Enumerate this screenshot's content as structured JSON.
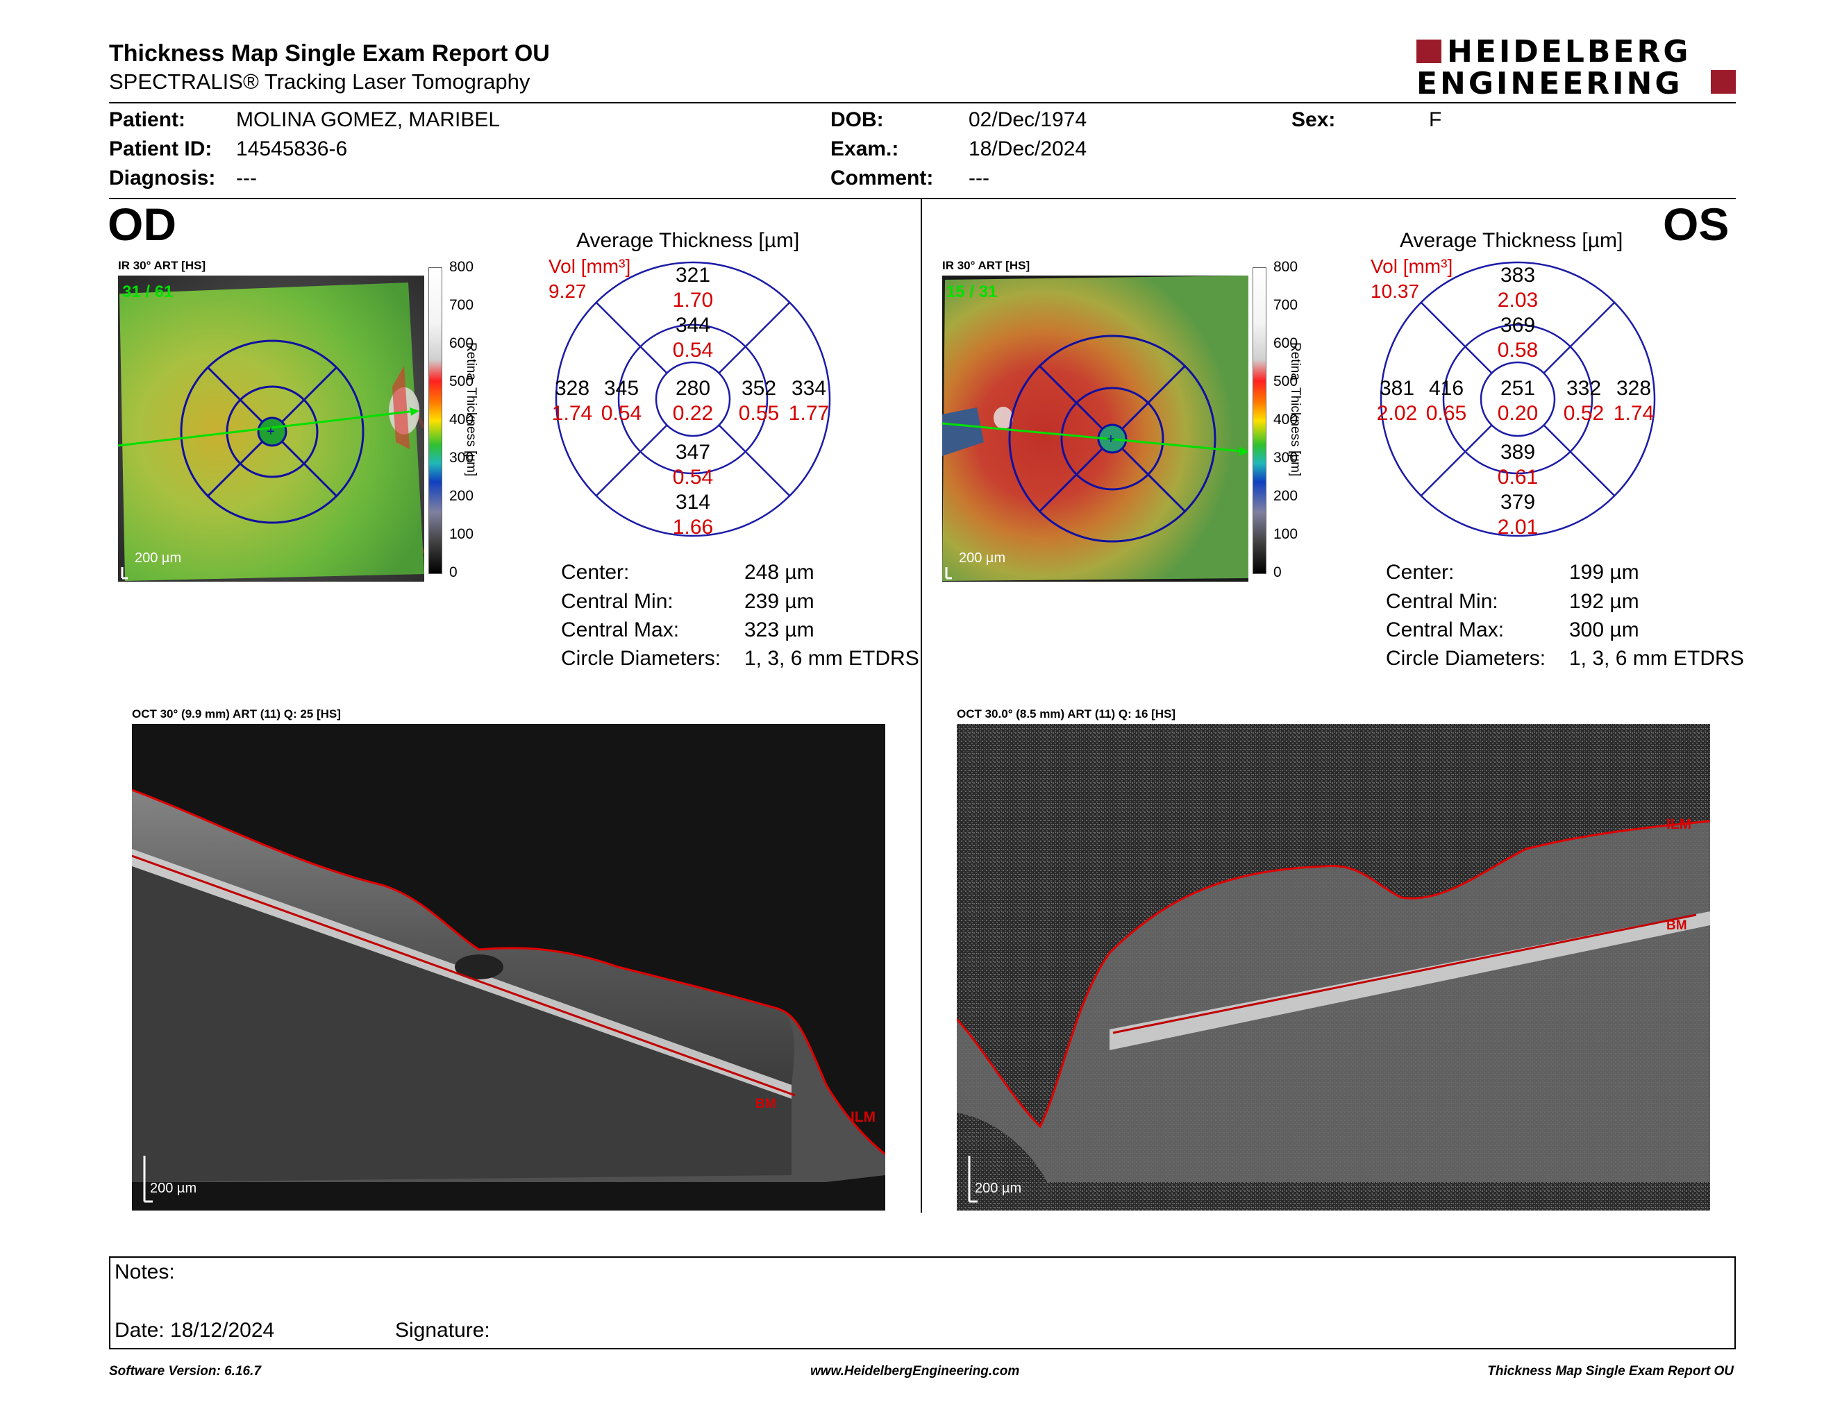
{
  "header": {
    "title": "Thickness Map Single Exam Report OU",
    "subtitle": "SPECTRALIS® Tracking Laser Tomography",
    "logo_line1": "HEIDELBERG",
    "logo_line2": "ENGINEERING"
  },
  "patient": {
    "patient_label": "Patient:",
    "patient_value": "MOLINA GOMEZ, MARIBEL",
    "id_label": "Patient ID:",
    "id_value": "14545836-6",
    "diagnosis_label": "Diagnosis:",
    "diagnosis_value": "---",
    "dob_label": "DOB:",
    "dob_value": "02/Dec/1974",
    "exam_label": "Exam.:",
    "exam_value": "18/Dec/2024",
    "comment_label": "Comment:",
    "comment_value": "---",
    "sex_label": "Sex:",
    "sex_value": "F"
  },
  "od": {
    "eye": "OD",
    "ir_label": "IR 30° ART [HS]",
    "frame_count": "31 / 61",
    "scale_label": "200 µm",
    "avg_title": "Average Thickness [µm]",
    "vol_label": "Vol [mm³]",
    "vol_total": "9.27",
    "etdrs": {
      "center": {
        "t": "280",
        "v": "0.22"
      },
      "inner_sup": {
        "t": "344",
        "v": "0.54"
      },
      "inner_inf": {
        "t": "347",
        "v": "0.54"
      },
      "inner_left": {
        "t": "345",
        "v": "0.54"
      },
      "inner_right": {
        "t": "352",
        "v": "0.55"
      },
      "outer_sup": {
        "t": "321",
        "v": "1.70"
      },
      "outer_inf": {
        "t": "314",
        "v": "1.66"
      },
      "outer_left": {
        "t": "328",
        "v": "1.74"
      },
      "outer_right": {
        "t": "334",
        "v": "1.77"
      }
    },
    "stats": {
      "center_label": "Center:",
      "center_value": "248 µm",
      "min_label": "Central Min:",
      "min_value": "239 µm",
      "max_label": "Central Max:",
      "max_value": "323 µm",
      "diam_label": "Circle Diameters:",
      "diam_value": "1, 3, 6 mm ETDRS"
    },
    "oct_label": "OCT 30° (9.9 mm) ART (11) Q: 25 [HS]",
    "oct_scale": "200 µm",
    "ilm": "ILM",
    "bm": "BM"
  },
  "os": {
    "eye": "OS",
    "ir_label": "IR 30° ART [HS]",
    "frame_count": "15 / 31",
    "scale_label": "200 µm",
    "avg_title": "Average Thickness [µm]",
    "vol_label": "Vol [mm³]",
    "vol_total": "10.37",
    "etdrs": {
      "center": {
        "t": "251",
        "v": "0.20"
      },
      "inner_sup": {
        "t": "369",
        "v": "0.58"
      },
      "inner_inf": {
        "t": "389",
        "v": "0.61"
      },
      "inner_left": {
        "t": "416",
        "v": "0.65"
      },
      "inner_right": {
        "t": "332",
        "v": "0.52"
      },
      "outer_sup": {
        "t": "383",
        "v": "2.03"
      },
      "outer_inf": {
        "t": "379",
        "v": "2.01"
      },
      "outer_left": {
        "t": "381",
        "v": "2.02"
      },
      "outer_right": {
        "t": "328",
        "v": "1.74"
      }
    },
    "stats": {
      "center_label": "Center:",
      "center_value": "199 µm",
      "min_label": "Central Min:",
      "min_value": "192 µm",
      "max_label": "Central Max:",
      "max_value": "300 µm",
      "diam_label": "Circle Diameters:",
      "diam_value": "1, 3, 6 mm ETDRS"
    },
    "oct_label": "OCT 30.0° (8.5 mm) ART (11) Q: 16 [HS]",
    "oct_scale": "200 µm",
    "ilm": "ILM",
    "bm": "BM"
  },
  "colorbar": {
    "ticks": [
      "800",
      "700",
      "600",
      "500",
      "400",
      "300",
      "200",
      "100",
      "0"
    ],
    "axis_label": "Retina  Thickness [µm]"
  },
  "notes": {
    "notes_label": "Notes:",
    "date_label": "Date: 18/12/2024",
    "signature_label": "Signature:"
  },
  "footer": {
    "software": "Software Version: 6.16.7",
    "website": "www.HeidelbergEngineering.com",
    "report": "Thickness Map Single Exam Report OU"
  },
  "colors": {
    "logo": "#9b1b2a",
    "value_red": "#d40000",
    "etdrs_blue": "#1c1ca8",
    "scan_green": "#00e000"
  }
}
